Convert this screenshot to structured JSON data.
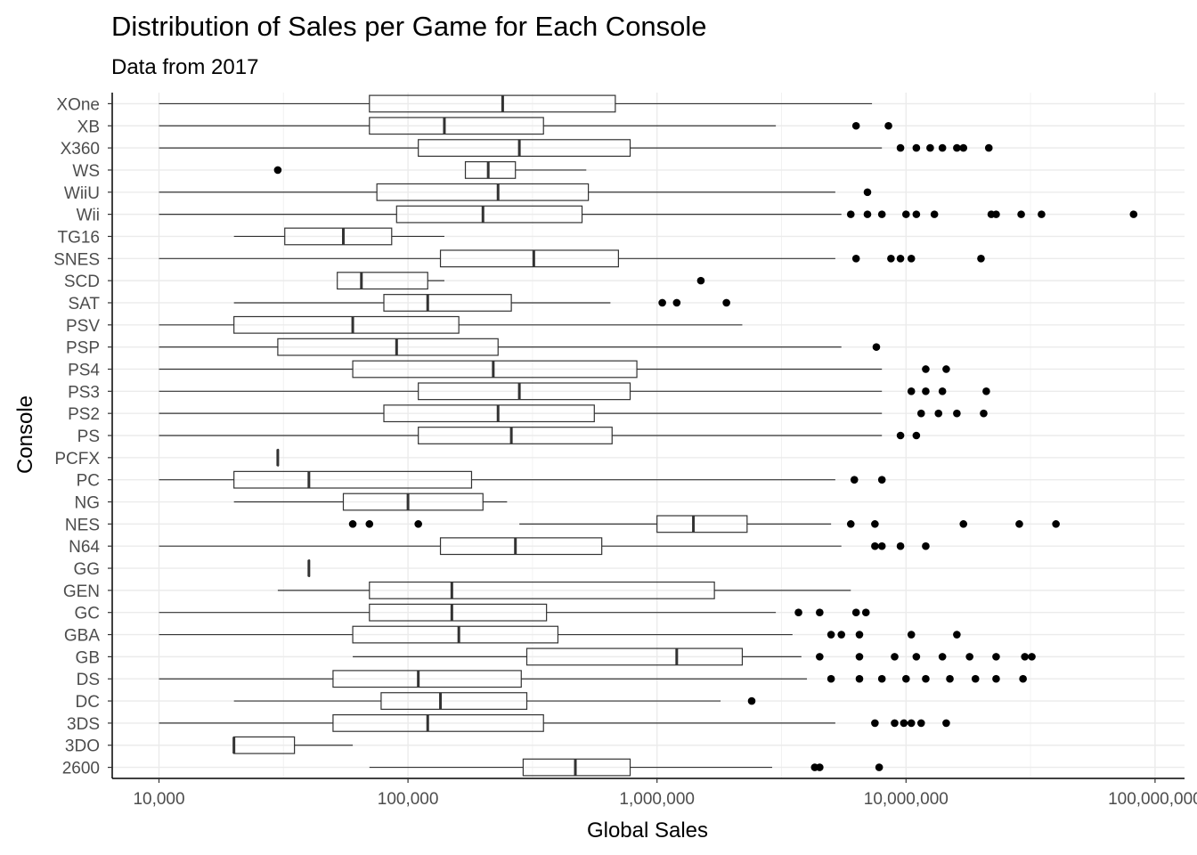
{
  "chart_data": {
    "type": "boxplot",
    "orientation": "horizontal",
    "title": "Distribution of Sales per Game for Each Console",
    "subtitle": "Data from 2017",
    "xlabel": "Global Sales",
    "ylabel": "Console",
    "x_scale": "log10",
    "xlim": [
      7000,
      140000000
    ],
    "x_ticks": [
      10000,
      100000,
      1000000,
      10000000,
      100000000
    ],
    "x_tick_labels": [
      "10,000",
      "100,000",
      "1,000,000",
      "10,000,000",
      "100,000,000"
    ],
    "grid": true,
    "categories": [
      "2600",
      "3DO",
      "3DS",
      "DC",
      "DS",
      "GB",
      "GBA",
      "GC",
      "GEN",
      "GG",
      "N64",
      "NES",
      "NG",
      "PC",
      "PCFX",
      "PS",
      "PS2",
      "PS3",
      "PS4",
      "PSP",
      "PSV",
      "SAT",
      "SCD",
      "SNES",
      "TG16",
      "Wii",
      "WiiU",
      "WS",
      "X360",
      "XB",
      "XOne"
    ],
    "boxes": [
      {
        "console": "2600",
        "q1": 290000,
        "median": 470000,
        "q3": 780000,
        "whisker_low": 70000,
        "whisker_high": 2900000,
        "outliers": [
          4300000,
          4500000,
          7800000
        ]
      },
      {
        "console": "3DO",
        "q1": 20000,
        "median": 20000,
        "q3": 35000,
        "whisker_low": 20000,
        "whisker_high": 60000,
        "outliers": []
      },
      {
        "console": "3DS",
        "q1": 50000,
        "median": 120000,
        "q3": 350000,
        "whisker_low": 10000,
        "whisker_high": 5200000,
        "outliers": [
          7500000,
          9000000,
          9800000,
          10500000,
          11500000,
          14500000
        ]
      },
      {
        "console": "DC",
        "q1": 78000,
        "median": 135000,
        "q3": 300000,
        "whisker_low": 20000,
        "whisker_high": 1800000,
        "outliers": [
          2400000
        ]
      },
      {
        "console": "DS",
        "q1": 50000,
        "median": 110000,
        "q3": 285000,
        "whisker_low": 10000,
        "whisker_high": 4000000,
        "outliers": [
          5000000,
          6500000,
          8000000,
          10000000,
          12000000,
          15000000,
          19000000,
          23000000,
          29500000
        ]
      },
      {
        "console": "GB",
        "q1": 300000,
        "median": 1200000,
        "q3": 2200000,
        "whisker_low": 60000,
        "whisker_high": 3800000,
        "outliers": [
          4500000,
          6500000,
          9000000,
          11000000,
          14000000,
          18000000,
          23000000,
          30000000,
          32000000
        ]
      },
      {
        "console": "GBA",
        "q1": 60000,
        "median": 160000,
        "q3": 400000,
        "whisker_low": 10000,
        "whisker_high": 3500000,
        "outliers": [
          5000000,
          5500000,
          6500000,
          10500000,
          16000000
        ]
      },
      {
        "console": "GC",
        "q1": 70000,
        "median": 150000,
        "q3": 360000,
        "whisker_low": 10000,
        "whisker_high": 3000000,
        "outliers": [
          3700000,
          4500000,
          6300000,
          6900000
        ]
      },
      {
        "console": "GEN",
        "q1": 70000,
        "median": 150000,
        "q3": 1700000,
        "whisker_low": 30000,
        "whisker_high": 6000000,
        "outliers": []
      },
      {
        "console": "GG",
        "q1": 40000,
        "median": 40000,
        "q3": 40000,
        "whisker_low": 40000,
        "whisker_high": 40000,
        "outliers": []
      },
      {
        "console": "N64",
        "q1": 135000,
        "median": 270000,
        "q3": 600000,
        "whisker_low": 10000,
        "whisker_high": 5500000,
        "outliers": [
          7500000,
          8000000,
          9500000,
          12000000
        ]
      },
      {
        "console": "NES",
        "q1": 1000000,
        "median": 1400000,
        "q3": 2300000,
        "whisker_low": 280000,
        "whisker_high": 5000000,
        "outliers": [
          60000,
          70000,
          110000,
          6000000,
          7500000,
          17000000,
          28500000,
          40000000
        ]
      },
      {
        "console": "NG",
        "q1": 55000,
        "median": 100000,
        "q3": 200000,
        "whisker_low": 20000,
        "whisker_high": 250000,
        "outliers": []
      },
      {
        "console": "PC",
        "q1": 20000,
        "median": 40000,
        "q3": 180000,
        "whisker_low": 10000,
        "whisker_high": 5200000,
        "outliers": [
          6200000,
          8000000
        ]
      },
      {
        "console": "PCFX",
        "q1": 30000,
        "median": 30000,
        "q3": 30000,
        "whisker_low": 30000,
        "whisker_high": 30000,
        "outliers": []
      },
      {
        "console": "PS",
        "q1": 110000,
        "median": 260000,
        "q3": 660000,
        "whisker_low": 10000,
        "whisker_high": 8000000,
        "outliers": [
          9500000,
          11000000
        ]
      },
      {
        "console": "PS2",
        "q1": 80000,
        "median": 230000,
        "q3": 560000,
        "whisker_low": 10000,
        "whisker_high": 8000000,
        "outliers": [
          11500000,
          13500000,
          16000000,
          20500000
        ]
      },
      {
        "console": "PS3",
        "q1": 110000,
        "median": 280000,
        "q3": 780000,
        "whisker_low": 10000,
        "whisker_high": 8000000,
        "outliers": [
          10500000,
          12000000,
          14000000,
          21000000
        ]
      },
      {
        "console": "PS4",
        "q1": 60000,
        "median": 220000,
        "q3": 830000,
        "whisker_low": 10000,
        "whisker_high": 8000000,
        "outliers": [
          12000000,
          14500000
        ]
      },
      {
        "console": "PSP",
        "q1": 30000,
        "median": 90000,
        "q3": 230000,
        "whisker_low": 10000,
        "whisker_high": 5500000,
        "outliers": [
          7600000
        ]
      },
      {
        "console": "PSV",
        "q1": 20000,
        "median": 60000,
        "q3": 160000,
        "whisker_low": 10000,
        "whisker_high": 2200000,
        "outliers": []
      },
      {
        "console": "SAT",
        "q1": 80000,
        "median": 120000,
        "q3": 260000,
        "whisker_low": 20000,
        "whisker_high": 650000,
        "outliers": [
          1050000,
          1200000,
          1900000
        ]
      },
      {
        "console": "SCD",
        "q1": 52000,
        "median": 65000,
        "q3": 120000,
        "whisker_low": 52000,
        "whisker_high": 140000,
        "outliers": [
          1500000
        ]
      },
      {
        "console": "SNES",
        "q1": 135000,
        "median": 320000,
        "q3": 700000,
        "whisker_low": 10000,
        "whisker_high": 5200000,
        "outliers": [
          6300000,
          8700000,
          9500000,
          10500000,
          20000000
        ]
      },
      {
        "console": "TG16",
        "q1": 32000,
        "median": 55000,
        "q3": 86000,
        "whisker_low": 20000,
        "whisker_high": 140000,
        "outliers": []
      },
      {
        "console": "Wii",
        "q1": 90000,
        "median": 200000,
        "q3": 500000,
        "whisker_low": 10000,
        "whisker_high": 5500000,
        "outliers": [
          6000000,
          7000000,
          8000000,
          10000000,
          11000000,
          13000000,
          22000000,
          23000000,
          29000000,
          35000000,
          82000000
        ]
      },
      {
        "console": "WiiU",
        "q1": 75000,
        "median": 230000,
        "q3": 530000,
        "whisker_low": 10000,
        "whisker_high": 5200000,
        "outliers": [
          7000000
        ]
      },
      {
        "console": "WS",
        "q1": 170000,
        "median": 210000,
        "q3": 270000,
        "whisker_low": 170000,
        "whisker_high": 520000,
        "outliers": [
          30000
        ]
      },
      {
        "console": "X360",
        "q1": 110000,
        "median": 280000,
        "q3": 780000,
        "whisker_low": 10000,
        "whisker_high": 8000000,
        "outliers": [
          9500000,
          11000000,
          12500000,
          14000000,
          16000000,
          17000000,
          21500000
        ]
      },
      {
        "console": "XB",
        "q1": 70000,
        "median": 140000,
        "q3": 350000,
        "whisker_low": 10000,
        "whisker_high": 3000000,
        "outliers": [
          6300000,
          8500000
        ]
      },
      {
        "console": "XOne",
        "q1": 70000,
        "median": 240000,
        "q3": 680000,
        "whisker_low": 10000,
        "whisker_high": 7300000,
        "outliers": []
      }
    ]
  }
}
